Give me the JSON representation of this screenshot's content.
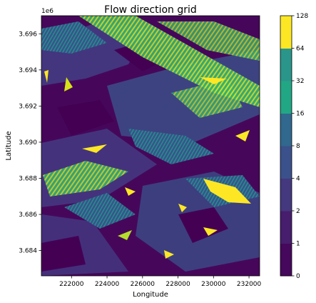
{
  "chart_data": {
    "type": "heatmap",
    "title": "Flow direction grid",
    "xlabel": "Longitude",
    "ylabel": "Latitude",
    "xlim": [
      220300,
      232600
    ],
    "ylim": [
      3682600,
      3697000
    ],
    "y_offset_label": "1e6",
    "x_ticks": [
      {
        "value": 222000,
        "label": "222000"
      },
      {
        "value": 224000,
        "label": "224000"
      },
      {
        "value": 226000,
        "label": "226000"
      },
      {
        "value": 228000,
        "label": "228000"
      },
      {
        "value": 230000,
        "label": "230000"
      },
      {
        "value": 232000,
        "label": "232000"
      }
    ],
    "y_ticks": [
      {
        "value": 3684000,
        "label": "3.684"
      },
      {
        "value": 3686000,
        "label": "3.686"
      },
      {
        "value": 3688000,
        "label": "3.688"
      },
      {
        "value": 3690000,
        "label": "3.690"
      },
      {
        "value": 3692000,
        "label": "3.692"
      },
      {
        "value": 3694000,
        "label": "3.694"
      },
      {
        "value": 3696000,
        "label": "3.696"
      }
    ],
    "colorbar": {
      "levels": [
        0,
        1,
        2,
        4,
        8,
        16,
        32,
        64,
        128
      ],
      "labels": [
        "0",
        "1",
        "2",
        "4",
        "8",
        "16",
        "32",
        "64",
        "128"
      ],
      "colors": [
        "#46085c",
        "#471d6d",
        "#44387e",
        "#3b518b",
        "#31688e",
        "#22a784",
        "#2a968b",
        "#fde725"
      ]
    },
    "heatmap_note": "Raster of D8 flow-direction codes (1, 2, 4, 8, 16, 32, 64, 128) over the extent; dominant codes 1-2 (dark purple) with diagonal bands of 64-128 (green/yellow) running NW-SE."
  }
}
